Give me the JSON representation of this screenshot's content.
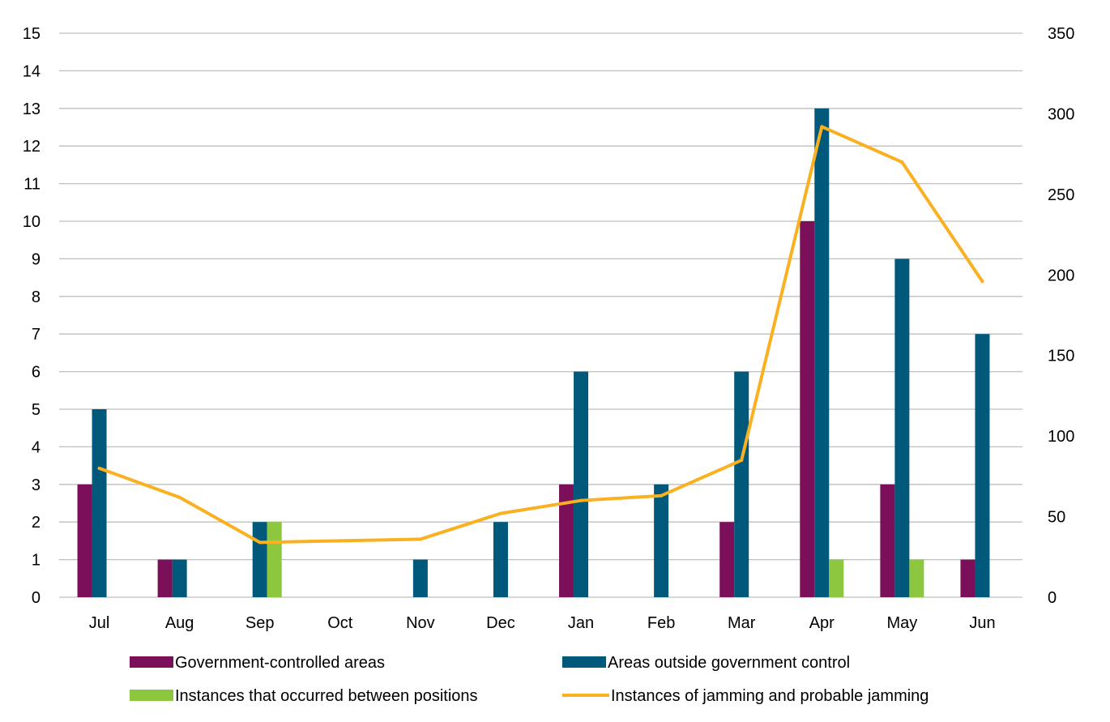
{
  "chart_data": {
    "type": "bar",
    "categories": [
      "Jul",
      "Aug",
      "Sep",
      "Oct",
      "Nov",
      "Dec",
      "Jan",
      "Feb",
      "Mar",
      "Apr",
      "May",
      "Jun"
    ],
    "series": [
      {
        "name": "Government-controlled areas",
        "type": "bar",
        "axis": "left",
        "color": "#7b0f5a",
        "values": [
          3,
          1,
          0,
          0,
          0,
          0,
          3,
          0,
          2,
          10,
          3,
          1
        ]
      },
      {
        "name": "Areas outside government control",
        "type": "bar",
        "axis": "left",
        "color": "#00587a",
        "values": [
          5,
          1,
          2,
          0,
          1,
          2,
          6,
          3,
          6,
          13,
          9,
          7
        ]
      },
      {
        "name": "Instances that occurred between positions",
        "type": "bar",
        "axis": "left",
        "color": "#8dc63f",
        "values": [
          0,
          0,
          2,
          0,
          0,
          0,
          0,
          0,
          0,
          1,
          1,
          0
        ]
      },
      {
        "name": "Instances of jamming and probable jamming",
        "type": "line",
        "axis": "right",
        "color": "#f9b021",
        "values": [
          80,
          62,
          34,
          35,
          36,
          52,
          60,
          63,
          85,
          292,
          270,
          196
        ]
      }
    ],
    "y_left": {
      "min": 0,
      "max": 15,
      "ticks": [
        0,
        1,
        2,
        3,
        4,
        5,
        6,
        7,
        8,
        9,
        10,
        11,
        12,
        13,
        14,
        15
      ]
    },
    "y_right": {
      "min": 0,
      "max": 350,
      "ticks": [
        0,
        50,
        100,
        150,
        200,
        250,
        300,
        350
      ]
    },
    "title": "",
    "xlabel": "",
    "ylabel": "",
    "grid": true,
    "legend_position": "bottom"
  }
}
